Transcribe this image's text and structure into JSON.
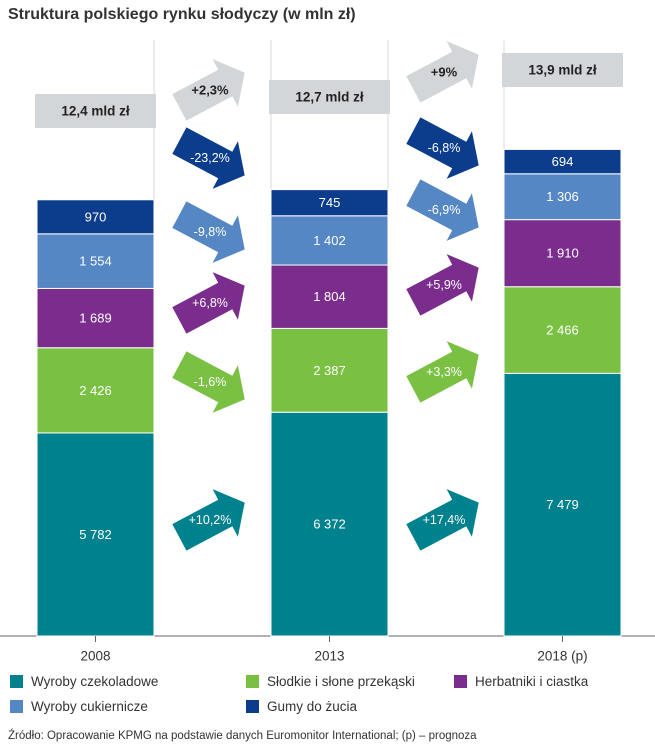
{
  "chart_data": {
    "type": "bar",
    "stacked": true,
    "title": "Struktura polskiego rynku słodyczy (w mln zł)",
    "categories": [
      "2008",
      "2013",
      "2018 (p)"
    ],
    "totals": [
      "12,4 mld zł",
      "12,7 mld zł",
      "13,9 mld zł"
    ],
    "series": [
      {
        "name": "Wyroby czekoladowe",
        "color": "#00818e",
        "values": [
          5782,
          6372,
          7479
        ],
        "labels": [
          "5 782",
          "6 372",
          "7 479"
        ]
      },
      {
        "name": "Słodkie i słone przekąski",
        "color": "#7ac143",
        "values": [
          2426,
          2387,
          2466
        ],
        "labels": [
          "2 426",
          "2 387",
          "2 466"
        ]
      },
      {
        "name": "Herbatniki i ciastka",
        "color": "#7b2d8e",
        "values": [
          1689,
          1804,
          1910
        ],
        "labels": [
          "1 689",
          "1 804",
          "1 910"
        ]
      },
      {
        "name": "Wyroby cukiernicze",
        "color": "#5587c5",
        "values": [
          1554,
          1402,
          1306
        ],
        "labels": [
          "1 554",
          "1 402",
          "1 306"
        ]
      },
      {
        "name": "Gumy do żucia",
        "color": "#0b3d8c",
        "values": [
          970,
          745,
          694
        ],
        "labels": [
          "970",
          "745",
          "694"
        ]
      }
    ],
    "changes": [
      {
        "total": "+2,3%",
        "series": [
          "+10,2%",
          "-1,6%",
          "+6,8%",
          "-9,8%",
          "-23,2%"
        ]
      },
      {
        "total": "+9%",
        "series": [
          "+17,4%",
          "+3,3%",
          "+5,9%",
          "-6,9%",
          "-6,8%"
        ]
      }
    ],
    "total_arrow_color": "#d3d6d9",
    "legend_position": "bottom"
  },
  "source": "Źródło: Opracowanie KPMG na podstawie danych Euromonitor International; (p) – prognoza"
}
